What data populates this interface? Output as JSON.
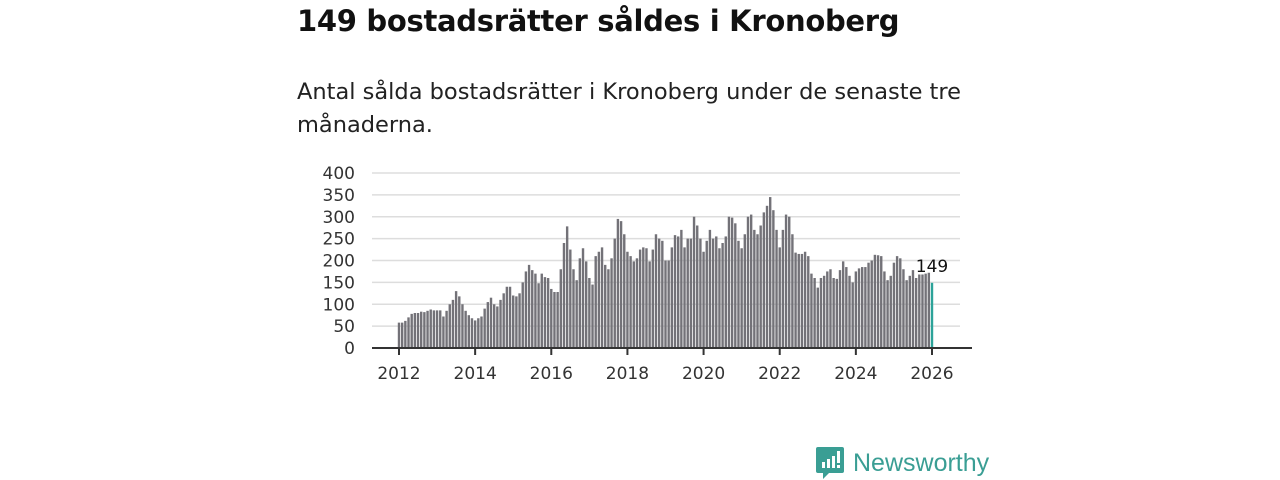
{
  "title": "149 bostadsrätter såldes i Kronoberg",
  "subtitle": "Antal sålda bostadsrätter i Kronoberg under de senaste tre månaderna.",
  "brand": "Newsworthy",
  "colors": {
    "bar": "#737278",
    "highlight": "#2ca399",
    "grid": "#dddddd",
    "axis": "#333333",
    "brand": "#3a9e94"
  },
  "chart_data": {
    "type": "bar",
    "title": "149 bostadsrätter såldes i Kronoberg",
    "xlabel": "",
    "ylabel": "",
    "ylim": [
      0,
      400
    ],
    "yticks": [
      "0",
      "50",
      "100",
      "150",
      "200",
      "250",
      "300",
      "350",
      "400"
    ],
    "xticks": [
      "2012",
      "2014",
      "2016",
      "2018",
      "2020",
      "2022",
      "2024",
      "2026"
    ],
    "x_start": "2012-01",
    "x_end": "2026-01",
    "interval": "month",
    "annotation": {
      "label": "149",
      "target": "last"
    },
    "values": [
      58,
      58,
      62,
      70,
      78,
      80,
      80,
      83,
      82,
      85,
      88,
      86,
      86,
      86,
      72,
      85,
      100,
      110,
      130,
      118,
      100,
      85,
      75,
      68,
      63,
      68,
      72,
      90,
      105,
      115,
      100,
      95,
      110,
      125,
      140,
      140,
      120,
      118,
      125,
      150,
      175,
      190,
      178,
      170,
      148,
      170,
      162,
      160,
      135,
      128,
      128,
      180,
      240,
      278,
      225,
      180,
      155,
      205,
      228,
      198,
      160,
      145,
      210,
      220,
      230,
      190,
      180,
      205,
      250,
      295,
      290,
      260,
      220,
      210,
      198,
      205,
      225,
      230,
      228,
      198,
      225,
      260,
      250,
      245,
      200,
      200,
      230,
      258,
      255,
      270,
      230,
      250,
      250,
      300,
      280,
      250,
      220,
      245,
      270,
      250,
      255,
      228,
      240,
      255,
      300,
      298,
      285,
      245,
      228,
      260,
      300,
      305,
      270,
      260,
      280,
      310,
      325,
      345,
      315,
      270,
      230,
      270,
      305,
      300,
      260,
      218,
      215,
      215,
      220,
      210,
      170,
      160,
      138,
      160,
      165,
      175,
      180,
      160,
      158,
      178,
      198,
      185,
      165,
      150,
      175,
      182,
      185,
      185,
      195,
      200,
      213,
      212,
      210,
      175,
      155,
      165,
      195,
      210,
      205,
      180,
      155,
      165,
      178,
      160,
      168,
      168,
      170,
      172,
      149
    ]
  }
}
